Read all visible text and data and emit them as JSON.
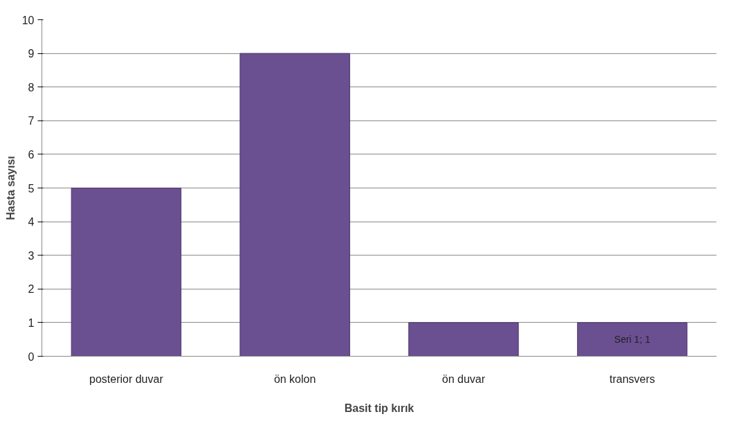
{
  "chart_data": {
    "type": "bar",
    "xlabel": "Basit tip kırık",
    "ylabel": "Hasta sayısı",
    "categories": [
      "posterior duvar",
      "ön kolon",
      "ön duvar",
      "transvers"
    ],
    "values": [
      5,
      9,
      1,
      1
    ],
    "color": "#6a4f91",
    "value_labels": [
      null,
      null,
      null,
      "Seri 1; 1"
    ],
    "ylim": [
      0,
      10
    ],
    "yticks": [
      0,
      1,
      2,
      3,
      4,
      5,
      6,
      7,
      8,
      9,
      10
    ],
    "grid": "y"
  }
}
